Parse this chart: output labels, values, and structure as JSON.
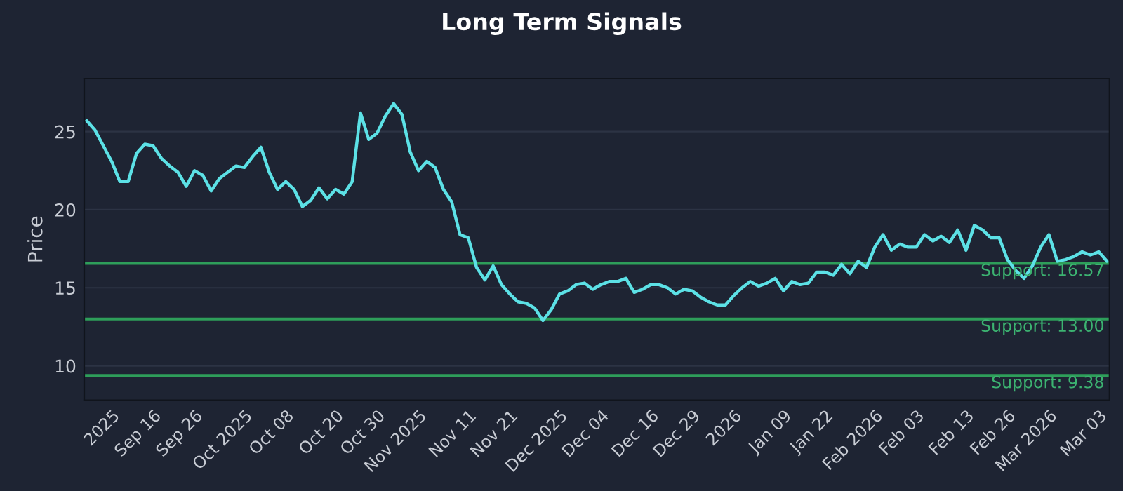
{
  "chart_data": {
    "type": "line",
    "title": "Long Term Signals",
    "ylabel": "Price",
    "categories": [
      null,
      null,
      null,
      "2025",
      null,
      null,
      null,
      null,
      "Sep 16",
      null,
      null,
      null,
      null,
      "Sep 26",
      null,
      null,
      null,
      null,
      null,
      "Oct 2025",
      null,
      null,
      null,
      null,
      "Oct 08",
      null,
      null,
      null,
      null,
      null,
      "Oct 20",
      null,
      null,
      null,
      null,
      "Oct 30",
      null,
      null,
      null,
      null,
      "Nov 2025",
      null,
      null,
      null,
      null,
      null,
      "Nov 11",
      null,
      null,
      null,
      null,
      "Nov 21",
      null,
      null,
      null,
      null,
      null,
      "Dec 2025",
      null,
      null,
      null,
      null,
      "Dec 04",
      null,
      null,
      null,
      null,
      null,
      "Dec 16",
      null,
      null,
      null,
      null,
      "Dec 29",
      null,
      null,
      null,
      null,
      "2026",
      null,
      null,
      null,
      null,
      null,
      "Jan 09",
      null,
      null,
      null,
      null,
      "Jan 22",
      null,
      null,
      null,
      null,
      null,
      "Feb 2026",
      null,
      null,
      null,
      null,
      "Feb 03",
      null,
      null,
      null,
      null,
      null,
      "Feb 13",
      null,
      null,
      null,
      null,
      "Feb 26",
      null,
      null,
      null,
      null,
      "Mar 2026",
      null,
      null,
      null,
      null,
      null,
      "Mar 03",
      null
    ],
    "series": [
      {
        "color": "#5ce1e6",
        "values": [
          25.7,
          25.1,
          24.1,
          23.1,
          21.8,
          21.8,
          23.6,
          24.2,
          24.1,
          23.3,
          22.8,
          22.4,
          21.5,
          22.5,
          22.2,
          21.2,
          22.0,
          22.4,
          22.8,
          22.7,
          23.4,
          24.0,
          22.4,
          21.3,
          21.8,
          21.3,
          20.2,
          20.6,
          21.4,
          20.7,
          21.3,
          21.0,
          21.8,
          26.2,
          24.5,
          24.9,
          26.0,
          26.8,
          26.1,
          23.7,
          22.5,
          23.1,
          22.7,
          21.3,
          20.5,
          18.4,
          18.2,
          16.3,
          15.5,
          16.4,
          15.2,
          14.6,
          14.1,
          14.0,
          13.7,
          12.9,
          13.6,
          14.6,
          14.8,
          15.2,
          15.3,
          14.9,
          15.2,
          15.4,
          15.4,
          15.6,
          14.7,
          14.9,
          15.2,
          15.2,
          15.0,
          14.6,
          14.9,
          14.8,
          14.4,
          14.1,
          13.9,
          13.9,
          14.5,
          15.0,
          15.4,
          15.1,
          15.3,
          15.6,
          14.8,
          15.4,
          15.2,
          15.3,
          16.0,
          16.0,
          15.8,
          16.5,
          15.9,
          16.7,
          16.3,
          17.6,
          18.4,
          17.4,
          17.8,
          17.6,
          17.6,
          18.4,
          18.0,
          18.3,
          17.9,
          18.7,
          17.4,
          19.0,
          18.7,
          18.2,
          18.2,
          16.8,
          16.1,
          15.6,
          16.4,
          17.6,
          18.4,
          16.7,
          16.8,
          17.0,
          17.3,
          17.1,
          17.3,
          16.7
        ]
      }
    ],
    "ylim": [
      7.8,
      28.4
    ],
    "yticks": [
      10,
      15,
      20,
      25
    ],
    "grid": "y",
    "ref_lines": [
      {
        "axis": "y",
        "value": 16.57,
        "label": "Support: 16.57",
        "color": "#2e9e5a"
      },
      {
        "axis": "y",
        "value": 13.0,
        "label": "Support: 13.00",
        "color": "#2e9e5a"
      },
      {
        "axis": "y",
        "value": 9.38,
        "label": "Support: 9.38",
        "color": "#2e9e5a"
      }
    ]
  }
}
